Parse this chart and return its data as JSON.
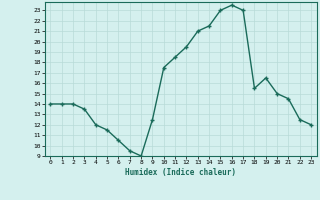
{
  "x": [
    0,
    1,
    2,
    3,
    4,
    5,
    6,
    7,
    8,
    9,
    10,
    11,
    12,
    13,
    14,
    15,
    16,
    17,
    18,
    19,
    20,
    21,
    22,
    23
  ],
  "y": [
    14,
    14,
    14,
    13.5,
    12,
    11.5,
    10.5,
    9.5,
    9,
    12.5,
    17.5,
    18.5,
    19.5,
    21,
    21.5,
    23,
    23.5,
    23,
    15.5,
    16.5,
    15,
    14.5,
    12.5,
    12
  ],
  "xlabel": "Humidex (Indice chaleur)",
  "xlim": [
    -0.5,
    23.5
  ],
  "ylim": [
    9,
    23.8
  ],
  "yticks": [
    9,
    10,
    11,
    12,
    13,
    14,
    15,
    16,
    17,
    18,
    19,
    20,
    21,
    22,
    23
  ],
  "xticks": [
    0,
    1,
    2,
    3,
    4,
    5,
    6,
    7,
    8,
    9,
    10,
    11,
    12,
    13,
    14,
    15,
    16,
    17,
    18,
    19,
    20,
    21,
    22,
    23
  ],
  "line_color": "#1a6b5a",
  "bg_color": "#d4f0ee",
  "grid_color": "#b8dbd8"
}
